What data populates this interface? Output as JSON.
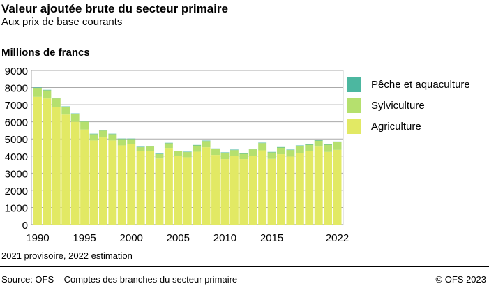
{
  "header": {
    "title": "Valeur ajoutée brute du secteur primaire",
    "subtitle": "Aux prix de base courants"
  },
  "footer": {
    "note": "2021 provisoire, 2022 estimation",
    "source": "Source: OFS – Comptes des branches du secteur primaire",
    "copyright": "© OFS 2023"
  },
  "chart_data": {
    "type": "bar",
    "stacked": true,
    "ylabel": "Millions de francs",
    "ylim": [
      0,
      9000
    ],
    "yticks": [
      0,
      1000,
      2000,
      3000,
      4000,
      5000,
      6000,
      7000,
      8000,
      9000
    ],
    "xtick_labels": [
      "1990",
      "1995",
      "2000",
      "2005",
      "2010",
      "2015",
      "2022"
    ],
    "grid": true,
    "legend_position": "right",
    "categories": [
      1990,
      1991,
      1992,
      1993,
      1994,
      1995,
      1996,
      1997,
      1998,
      1999,
      2000,
      2001,
      2002,
      2003,
      2004,
      2005,
      2006,
      2007,
      2008,
      2009,
      2010,
      2011,
      2012,
      2013,
      2014,
      2015,
      2016,
      2017,
      2018,
      2019,
      2020,
      2021,
      2022
    ],
    "series": [
      {
        "name": "Agriculture",
        "color": "#e2e964",
        "values": [
          7460,
          7364,
          6846,
          6424,
          6001,
          5551,
          4911,
          5088,
          4911,
          4625,
          4720,
          4298,
          4298,
          3862,
          4475,
          4028,
          3933,
          4257,
          4514,
          4068,
          3825,
          4001,
          3825,
          4028,
          4338,
          3839,
          4109,
          3974,
          4176,
          4311,
          4554,
          4244,
          4365
        ]
      },
      {
        "name": "Sylviculture",
        "color": "#b5e06e",
        "values": [
          520,
          480,
          520,
          450,
          470,
          465,
          370,
          400,
          370,
          370,
          275,
          220,
          260,
          260,
          275,
          260,
          300,
          365,
          365,
          350,
          365,
          350,
          310,
          365,
          420,
          380,
          390,
          380,
          420,
          350,
          350,
          420,
          460
        ]
      },
      {
        "name": "Pêche et aquaculture",
        "color": "#4cb7a0",
        "values": [
          25,
          25,
          26,
          26,
          21,
          26,
          25,
          22,
          25,
          25,
          25,
          25,
          26,
          26,
          25,
          23,
          24,
          27,
          26,
          28,
          27,
          28,
          28,
          26,
          26,
          25,
          28,
          25,
          26,
          29,
          28,
          26,
          26
        ]
      }
    ]
  }
}
